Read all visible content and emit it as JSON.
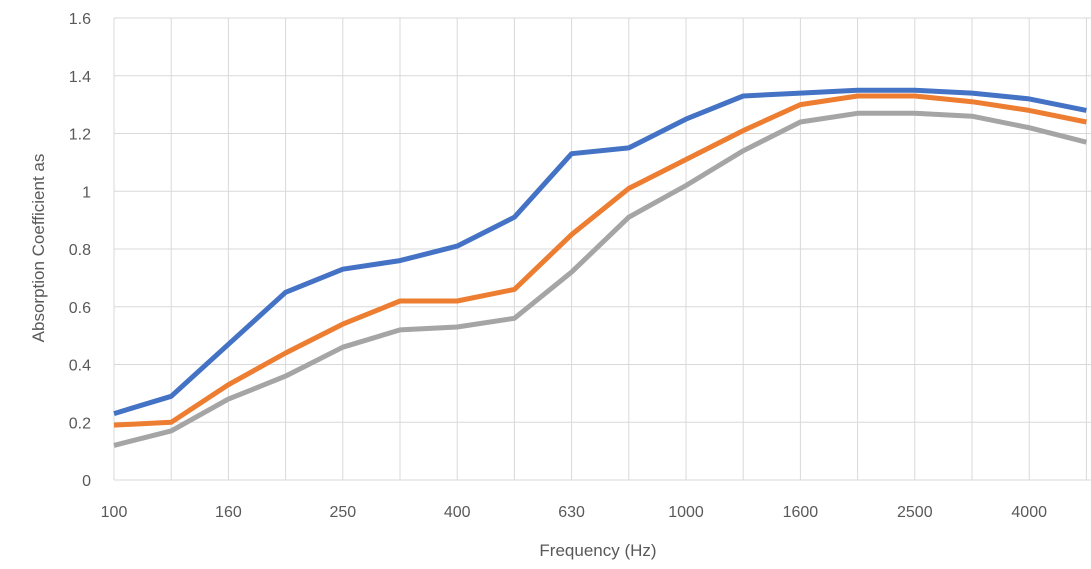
{
  "chart_data": {
    "type": "line",
    "title": "",
    "xlabel": "Frequency (Hz)",
    "ylabel": "Absorption Coefficient as",
    "categories": [
      "100",
      "125",
      "160",
      "200",
      "250",
      "315",
      "400",
      "500",
      "630",
      "800",
      "1000",
      "1250",
      "1600",
      "2000",
      "2500",
      "3150",
      "4000",
      "5000"
    ],
    "x_tick_labels_shown": [
      "100",
      "160",
      "250",
      "400",
      "630",
      "1000",
      "1600",
      "2500",
      "4000"
    ],
    "ylim": [
      0,
      1.6
    ],
    "y_ticks": [
      "0",
      "0.2",
      "0.4",
      "0.6",
      "0.8",
      "1",
      "1.2",
      "1.4",
      "1.6"
    ],
    "grid": true,
    "legend": "none",
    "series": [
      {
        "color": "#4472c4",
        "values": [
          0.23,
          0.29,
          0.47,
          0.65,
          0.73,
          0.76,
          0.81,
          0.91,
          1.13,
          1.15,
          1.25,
          1.33,
          1.34,
          1.35,
          1.35,
          1.34,
          1.32,
          1.28
        ]
      },
      {
        "color": "#ed7d31",
        "values": [
          0.19,
          0.2,
          0.33,
          0.44,
          0.54,
          0.62,
          0.62,
          0.66,
          0.85,
          1.01,
          1.11,
          1.21,
          1.3,
          1.33,
          1.33,
          1.31,
          1.28,
          1.24
        ]
      },
      {
        "color": "#a5a5a5",
        "values": [
          0.12,
          0.17,
          0.28,
          0.36,
          0.46,
          0.52,
          0.53,
          0.56,
          0.72,
          0.91,
          1.02,
          1.14,
          1.24,
          1.27,
          1.27,
          1.26,
          1.22,
          1.17
        ]
      }
    ]
  }
}
